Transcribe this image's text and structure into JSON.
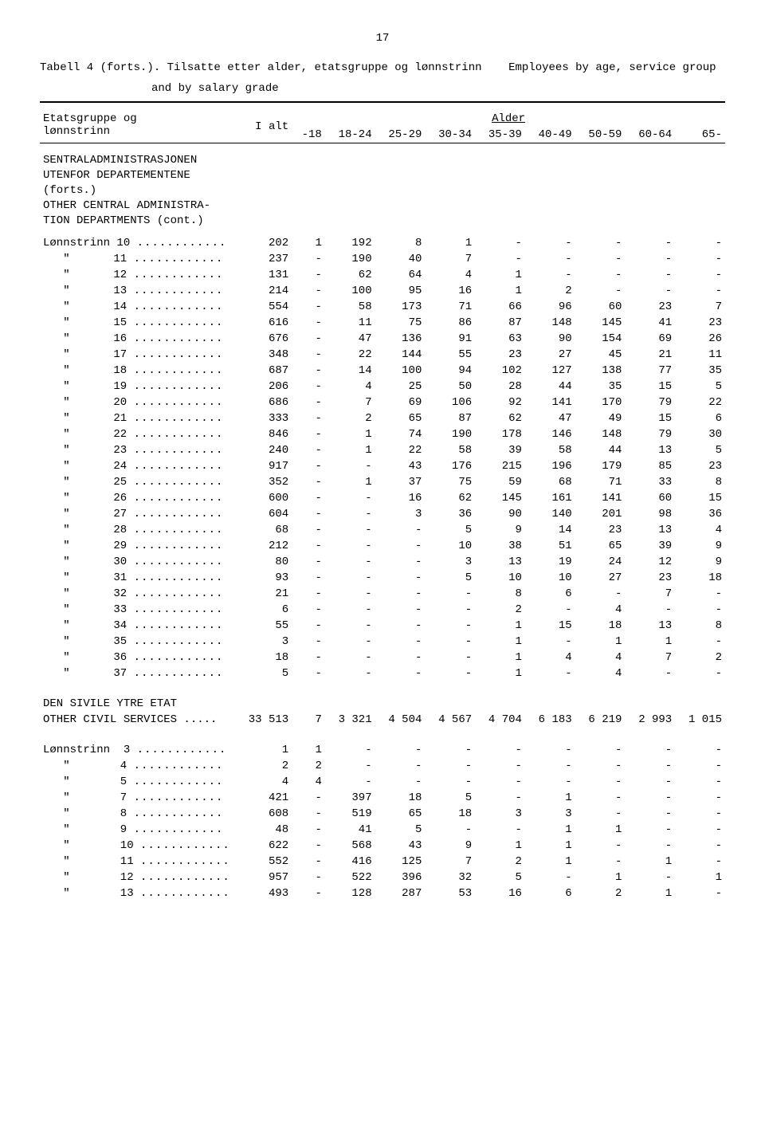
{
  "page_number": "17",
  "caption_no": "Tabell 4 (forts.).  Tilsatte etter alder, etatsgruppe og lønnstrinn",
  "caption_en": "Employees by age, service group",
  "caption_line2": "and by salary grade",
  "header": {
    "group_label1": "Etatsgruppe og",
    "group_label2": "lønnstrinn",
    "total": "I alt",
    "age_label": "Alder",
    "cols": [
      "-18",
      "18-24",
      "25-29",
      "30-34",
      "35-39",
      "40-49",
      "50-59",
      "60-64",
      "65-"
    ]
  },
  "section1": {
    "lines": [
      "SENTRALADMINISTRASJONEN",
      "UTENFOR DEPARTEMENTENE",
      "(forts.)",
      "OTHER CENTRAL ADMINISTRA-",
      "TION DEPARTMENTS (cont.)"
    ]
  },
  "row_prefix": "Lønnstrinn",
  "ditto": "\"",
  "rows1": [
    {
      "n": "10",
      "v": [
        "202",
        "1",
        "192",
        "8",
        "1",
        "-",
        "-",
        "-",
        "-",
        "-"
      ]
    },
    {
      "n": "11",
      "v": [
        "237",
        "-",
        "190",
        "40",
        "7",
        "-",
        "-",
        "-",
        "-",
        "-"
      ]
    },
    {
      "n": "12",
      "v": [
        "131",
        "-",
        "62",
        "64",
        "4",
        "1",
        "-",
        "-",
        "-",
        "-"
      ]
    },
    {
      "n": "13",
      "v": [
        "214",
        "-",
        "100",
        "95",
        "16",
        "1",
        "2",
        "-",
        "-",
        "-"
      ]
    },
    {
      "n": "14",
      "v": [
        "554",
        "-",
        "58",
        "173",
        "71",
        "66",
        "96",
        "60",
        "23",
        "7"
      ]
    },
    {
      "n": "15",
      "v": [
        "616",
        "-",
        "11",
        "75",
        "86",
        "87",
        "148",
        "145",
        "41",
        "23"
      ]
    },
    {
      "n": "16",
      "v": [
        "676",
        "-",
        "47",
        "136",
        "91",
        "63",
        "90",
        "154",
        "69",
        "26"
      ]
    },
    {
      "n": "17",
      "v": [
        "348",
        "-",
        "22",
        "144",
        "55",
        "23",
        "27",
        "45",
        "21",
        "11"
      ]
    },
    {
      "n": "18",
      "v": [
        "687",
        "-",
        "14",
        "100",
        "94",
        "102",
        "127",
        "138",
        "77",
        "35"
      ]
    },
    {
      "n": "19",
      "v": [
        "206",
        "-",
        "4",
        "25",
        "50",
        "28",
        "44",
        "35",
        "15",
        "5"
      ]
    },
    {
      "n": "20",
      "v": [
        "686",
        "-",
        "7",
        "69",
        "106",
        "92",
        "141",
        "170",
        "79",
        "22"
      ]
    },
    {
      "n": "21",
      "v": [
        "333",
        "-",
        "2",
        "65",
        "87",
        "62",
        "47",
        "49",
        "15",
        "6"
      ]
    },
    {
      "n": "22",
      "v": [
        "846",
        "-",
        "1",
        "74",
        "190",
        "178",
        "146",
        "148",
        "79",
        "30"
      ]
    },
    {
      "n": "23",
      "v": [
        "240",
        "-",
        "1",
        "22",
        "58",
        "39",
        "58",
        "44",
        "13",
        "5"
      ]
    },
    {
      "n": "24",
      "v": [
        "917",
        "-",
        "-",
        "43",
        "176",
        "215",
        "196",
        "179",
        "85",
        "23"
      ]
    },
    {
      "n": "25",
      "v": [
        "352",
        "-",
        "1",
        "37",
        "75",
        "59",
        "68",
        "71",
        "33",
        "8"
      ]
    },
    {
      "n": "26",
      "v": [
        "600",
        "-",
        "-",
        "16",
        "62",
        "145",
        "161",
        "141",
        "60",
        "15"
      ]
    },
    {
      "n": "27",
      "v": [
        "604",
        "-",
        "-",
        "3",
        "36",
        "90",
        "140",
        "201",
        "98",
        "36"
      ]
    },
    {
      "n": "28",
      "v": [
        "68",
        "-",
        "-",
        "-",
        "5",
        "9",
        "14",
        "23",
        "13",
        "4"
      ]
    },
    {
      "n": "29",
      "v": [
        "212",
        "-",
        "-",
        "-",
        "10",
        "38",
        "51",
        "65",
        "39",
        "9"
      ]
    },
    {
      "n": "30",
      "v": [
        "80",
        "-",
        "-",
        "-",
        "3",
        "13",
        "19",
        "24",
        "12",
        "9"
      ]
    },
    {
      "n": "31",
      "v": [
        "93",
        "-",
        "-",
        "-",
        "5",
        "10",
        "10",
        "27",
        "23",
        "18"
      ]
    },
    {
      "n": "32",
      "v": [
        "21",
        "-",
        "-",
        "-",
        "-",
        "8",
        "6",
        "-",
        "7",
        "-"
      ]
    },
    {
      "n": "33",
      "v": [
        "6",
        "-",
        "-",
        "-",
        "-",
        "2",
        "-",
        "4",
        "-",
        "-"
      ]
    },
    {
      "n": "34",
      "v": [
        "55",
        "-",
        "-",
        "-",
        "-",
        "1",
        "15",
        "18",
        "13",
        "8"
      ]
    },
    {
      "n": "35",
      "v": [
        "3",
        "-",
        "-",
        "-",
        "-",
        "1",
        "-",
        "1",
        "1",
        "-"
      ]
    },
    {
      "n": "36",
      "v": [
        "18",
        "-",
        "-",
        "-",
        "-",
        "1",
        "4",
        "4",
        "7",
        "2"
      ]
    },
    {
      "n": "37",
      "v": [
        "5",
        "-",
        "-",
        "-",
        "-",
        "1",
        "-",
        "4",
        "-",
        "-"
      ]
    }
  ],
  "section2": {
    "line1": "DEN SIVILE YTRE ETAT",
    "line2_label": "OTHER CIVIL SERVICES .....",
    "line2_values": [
      "33 513",
      "7",
      "3 321",
      "4 504",
      "4 567",
      "4 704",
      "6 183",
      "6 219",
      "2 993",
      "1 015"
    ]
  },
  "rows2": [
    {
      "n": "3",
      "v": [
        "1",
        "1",
        "-",
        "-",
        "-",
        "-",
        "-",
        "-",
        "-",
        "-"
      ]
    },
    {
      "n": "4",
      "v": [
        "2",
        "2",
        "-",
        "-",
        "-",
        "-",
        "-",
        "-",
        "-",
        "-"
      ]
    },
    {
      "n": "5",
      "v": [
        "4",
        "4",
        "-",
        "-",
        "-",
        "-",
        "-",
        "-",
        "-",
        "-"
      ]
    },
    {
      "n": "7",
      "v": [
        "421",
        "-",
        "397",
        "18",
        "5",
        "-",
        "1",
        "-",
        "-",
        "-"
      ]
    },
    {
      "n": "8",
      "v": [
        "608",
        "-",
        "519",
        "65",
        "18",
        "3",
        "3",
        "-",
        "-",
        "-"
      ]
    },
    {
      "n": "9",
      "v": [
        "48",
        "-",
        "41",
        "5",
        "-",
        "-",
        "1",
        "1",
        "-",
        "-"
      ]
    },
    {
      "n": "10",
      "v": [
        "622",
        "-",
        "568",
        "43",
        "9",
        "1",
        "1",
        "-",
        "-",
        "-"
      ]
    },
    {
      "n": "11",
      "v": [
        "552",
        "-",
        "416",
        "125",
        "7",
        "2",
        "1",
        "-",
        "1",
        "-"
      ]
    },
    {
      "n": "12",
      "v": [
        "957",
        "-",
        "522",
        "396",
        "32",
        "5",
        "-",
        "1",
        "-",
        "1"
      ]
    },
    {
      "n": "13",
      "v": [
        "493",
        "-",
        "128",
        "287",
        "53",
        "16",
        "6",
        "2",
        "1",
        "-"
      ]
    }
  ],
  "dots": "............"
}
